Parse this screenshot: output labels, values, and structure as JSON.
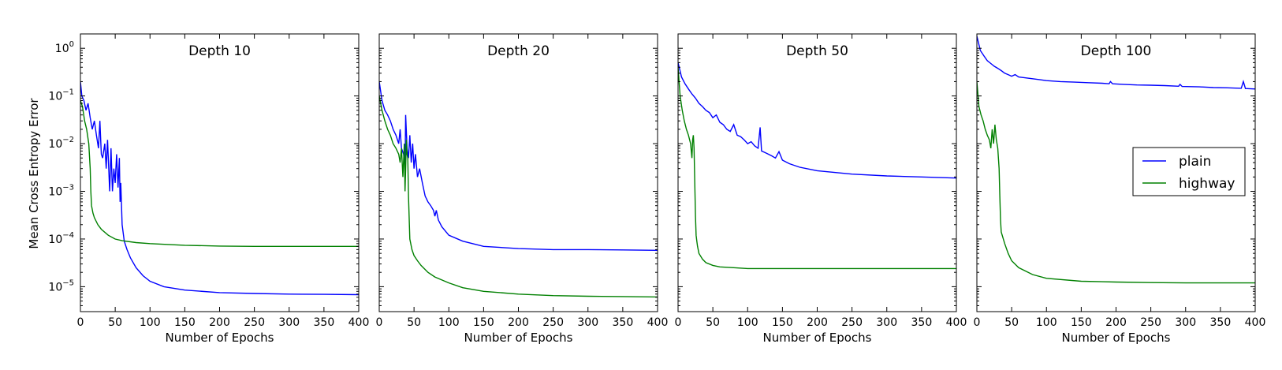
{
  "figure": {
    "ylabel": "Mean Cross Entropy Error",
    "xlabel": "Number of Epochs",
    "series_colors": {
      "plain": "#0000ff",
      "highway": "#008000"
    }
  },
  "chart_data": [
    {
      "type": "line",
      "title": "Depth 10",
      "xlabel": "Number of Epochs",
      "ylabel": "Mean Cross Entropy Error",
      "xlim": [
        0,
        400
      ],
      "ylim": [
        3e-06,
        2
      ],
      "yscale": "log",
      "xticks": [
        "0",
        "50",
        "100",
        "150",
        "200",
        "250",
        "300",
        "350",
        "400"
      ],
      "yticks": [
        "10^0",
        "10^-1",
        "10^-2",
        "10^-3",
        "10^-4",
        "10^-5"
      ],
      "grid": false,
      "series": [
        {
          "name": "plain",
          "color": "#0000ff",
          "x": [
            0,
            2,
            5,
            8,
            11,
            14,
            17,
            20,
            23,
            26,
            28,
            30,
            32,
            35,
            37,
            39,
            42,
            44,
            46,
            48,
            50,
            52,
            54,
            56,
            57,
            58,
            60,
            63,
            67,
            72,
            80,
            90,
            100,
            120,
            150,
            200,
            250,
            300,
            350,
            400
          ],
          "y": [
            0.2,
            0.1,
            0.08,
            0.05,
            0.07,
            0.035,
            0.02,
            0.03,
            0.015,
            0.008,
            0.03,
            0.006,
            0.005,
            0.01,
            0.003,
            0.012,
            0.001,
            0.008,
            0.001,
            0.003,
            0.0015,
            0.006,
            0.0012,
            0.005,
            0.0006,
            0.0015,
            0.0002,
            9e-05,
            6e-05,
            4e-05,
            2.5e-05,
            1.7e-05,
            1.3e-05,
            1e-05,
            8.5e-06,
            7.5e-06,
            7.2e-06,
            7e-06,
            6.9e-06,
            6.8e-06
          ]
        },
        {
          "name": "highway",
          "color": "#008000",
          "x": [
            0,
            3,
            6,
            9,
            12,
            14,
            15,
            16,
            18,
            20,
            25,
            30,
            40,
            50,
            60,
            80,
            100,
            150,
            200,
            250,
            300,
            350,
            400
          ],
          "y": [
            0.08,
            0.06,
            0.03,
            0.02,
            0.01,
            0.003,
            0.001,
            0.0005,
            0.00035,
            0.00028,
            0.0002,
            0.00016,
            0.00012,
            0.0001,
            9.2e-05,
            8.4e-05,
            8e-05,
            7.4e-05,
            7.1e-05,
            7e-05,
            7e-05,
            7e-05,
            7e-05
          ]
        }
      ]
    },
    {
      "type": "line",
      "title": "Depth 20",
      "xlabel": "Number of Epochs",
      "xlim": [
        0,
        400
      ],
      "ylim": [
        3e-06,
        2
      ],
      "yscale": "log",
      "xticks": [
        "0",
        "50",
        "100",
        "150",
        "200",
        "250",
        "300",
        "350",
        "400"
      ],
      "grid": false,
      "series": [
        {
          "name": "plain",
          "color": "#0000ff",
          "x": [
            0,
            4,
            8,
            12,
            16,
            20,
            24,
            28,
            30,
            32,
            35,
            37,
            38,
            40,
            42,
            44,
            46,
            48,
            50,
            52,
            55,
            58,
            62,
            66,
            70,
            74,
            78,
            80,
            82,
            85,
            90,
            100,
            120,
            150,
            200,
            250,
            300,
            350,
            400
          ],
          "y": [
            0.2,
            0.08,
            0.05,
            0.04,
            0.03,
            0.02,
            0.015,
            0.01,
            0.02,
            0.008,
            0.006,
            0.003,
            0.04,
            0.008,
            0.005,
            0.015,
            0.004,
            0.01,
            0.003,
            0.006,
            0.002,
            0.003,
            0.0015,
            0.0008,
            0.0006,
            0.0005,
            0.0004,
            0.0003,
            0.0004,
            0.00025,
            0.00018,
            0.00012,
            9e-05,
            7e-05,
            6.3e-05,
            6e-05,
            6e-05,
            5.9e-05,
            5.8e-05
          ]
        },
        {
          "name": "highway",
          "color": "#008000",
          "x": [
            0,
            4,
            8,
            12,
            16,
            20,
            24,
            28,
            30,
            32,
            34,
            36,
            37,
            38,
            39,
            40,
            41,
            42,
            44,
            47,
            50,
            55,
            60,
            70,
            80,
            100,
            120,
            150,
            200,
            250,
            300,
            350,
            400
          ],
          "y": [
            0.1,
            0.05,
            0.03,
            0.02,
            0.015,
            0.01,
            0.008,
            0.006,
            0.004,
            0.008,
            0.002,
            0.01,
            0.001,
            0.003,
            0.012,
            0.006,
            0.005,
            0.0008,
            0.0001,
            6e-05,
            4.5e-05,
            3.5e-05,
            2.8e-05,
            2e-05,
            1.6e-05,
            1.2e-05,
            9.5e-06,
            8e-06,
            7e-06,
            6.5e-06,
            6.3e-06,
            6.2e-06,
            6.1e-06
          ]
        }
      ]
    },
    {
      "type": "line",
      "title": "Depth 50",
      "xlabel": "Number of Epochs",
      "xlim": [
        0,
        400
      ],
      "ylim": [
        3e-06,
        2
      ],
      "yscale": "log",
      "xticks": [
        "0",
        "50",
        "100",
        "150",
        "200",
        "250",
        "300",
        "350",
        "400"
      ],
      "grid": false,
      "series": [
        {
          "name": "plain",
          "color": "#0000ff",
          "x": [
            0,
            5,
            10,
            15,
            20,
            25,
            30,
            35,
            40,
            45,
            50,
            55,
            60,
            65,
            70,
            75,
            80,
            85,
            90,
            95,
            100,
            105,
            110,
            115,
            118,
            120,
            125,
            130,
            135,
            140,
            145,
            150,
            160,
            175,
            200,
            250,
            300,
            350,
            400
          ],
          "y": [
            0.5,
            0.25,
            0.18,
            0.14,
            0.11,
            0.09,
            0.07,
            0.06,
            0.05,
            0.045,
            0.035,
            0.04,
            0.028,
            0.025,
            0.02,
            0.018,
            0.025,
            0.015,
            0.014,
            0.012,
            0.01,
            0.011,
            0.009,
            0.008,
            0.022,
            0.007,
            0.0065,
            0.006,
            0.0055,
            0.005,
            0.0068,
            0.0045,
            0.0038,
            0.0032,
            0.0027,
            0.0023,
            0.0021,
            0.002,
            0.0019
          ]
        },
        {
          "name": "highway",
          "color": "#008000",
          "x": [
            0,
            3,
            6,
            9,
            12,
            15,
            18,
            20,
            21,
            22,
            23,
            24,
            25,
            26,
            27,
            28,
            30,
            35,
            40,
            50,
            60,
            80,
            100,
            150,
            200,
            250,
            300,
            350,
            400
          ],
          "y": [
            0.4,
            0.1,
            0.05,
            0.03,
            0.02,
            0.015,
            0.01,
            0.005,
            0.012,
            0.015,
            0.008,
            0.0015,
            0.0003,
            0.00012,
            9e-05,
            7e-05,
            5e-05,
            3.8e-05,
            3.2e-05,
            2.8e-05,
            2.6e-05,
            2.5e-05,
            2.4e-05,
            2.4e-05,
            2.4e-05,
            2.4e-05,
            2.4e-05,
            2.4e-05,
            2.4e-05
          ]
        }
      ]
    },
    {
      "type": "line",
      "title": "Depth 100",
      "xlabel": "Number of Epochs",
      "xlim": [
        0,
        400
      ],
      "ylim": [
        3e-06,
        2
      ],
      "yscale": "log",
      "xticks": [
        "0",
        "50",
        "100",
        "150",
        "200",
        "250",
        "300",
        "350",
        "400"
      ],
      "grid": false,
      "legend": {
        "location": "center-right",
        "entries": [
          "plain",
          "highway"
        ]
      },
      "series": [
        {
          "name": "plain",
          "color": "#0000ff",
          "x": [
            0,
            5,
            10,
            15,
            20,
            25,
            30,
            35,
            40,
            45,
            50,
            55,
            60,
            70,
            80,
            90,
            100,
            120,
            140,
            160,
            180,
            190,
            192,
            195,
            210,
            230,
            250,
            270,
            290,
            292,
            295,
            320,
            340,
            360,
            380,
            383,
            386,
            400
          ],
          "y": [
            1.8,
            0.9,
            0.7,
            0.55,
            0.48,
            0.42,
            0.38,
            0.34,
            0.3,
            0.28,
            0.26,
            0.28,
            0.25,
            0.24,
            0.23,
            0.22,
            0.21,
            0.2,
            0.195,
            0.19,
            0.185,
            0.18,
            0.2,
            0.18,
            0.175,
            0.17,
            0.168,
            0.165,
            0.16,
            0.175,
            0.158,
            0.155,
            0.15,
            0.148,
            0.145,
            0.2,
            0.143,
            0.14
          ]
        },
        {
          "name": "highway",
          "color": "#008000",
          "x": [
            0,
            3,
            6,
            9,
            12,
            15,
            18,
            20,
            22,
            24,
            26,
            28,
            30,
            32,
            33,
            34,
            35,
            40,
            45,
            50,
            60,
            80,
            100,
            150,
            200,
            250,
            300,
            350,
            400
          ],
          "y": [
            0.2,
            0.06,
            0.04,
            0.03,
            0.02,
            0.015,
            0.012,
            0.008,
            0.02,
            0.01,
            0.025,
            0.012,
            0.008,
            0.003,
            0.0008,
            0.00025,
            0.00014,
            8e-05,
            5e-05,
            3.5e-05,
            2.5e-05,
            1.8e-05,
            1.5e-05,
            1.3e-05,
            1.25e-05,
            1.22e-05,
            1.2e-05,
            1.2e-05,
            1.2e-05
          ]
        }
      ]
    }
  ]
}
